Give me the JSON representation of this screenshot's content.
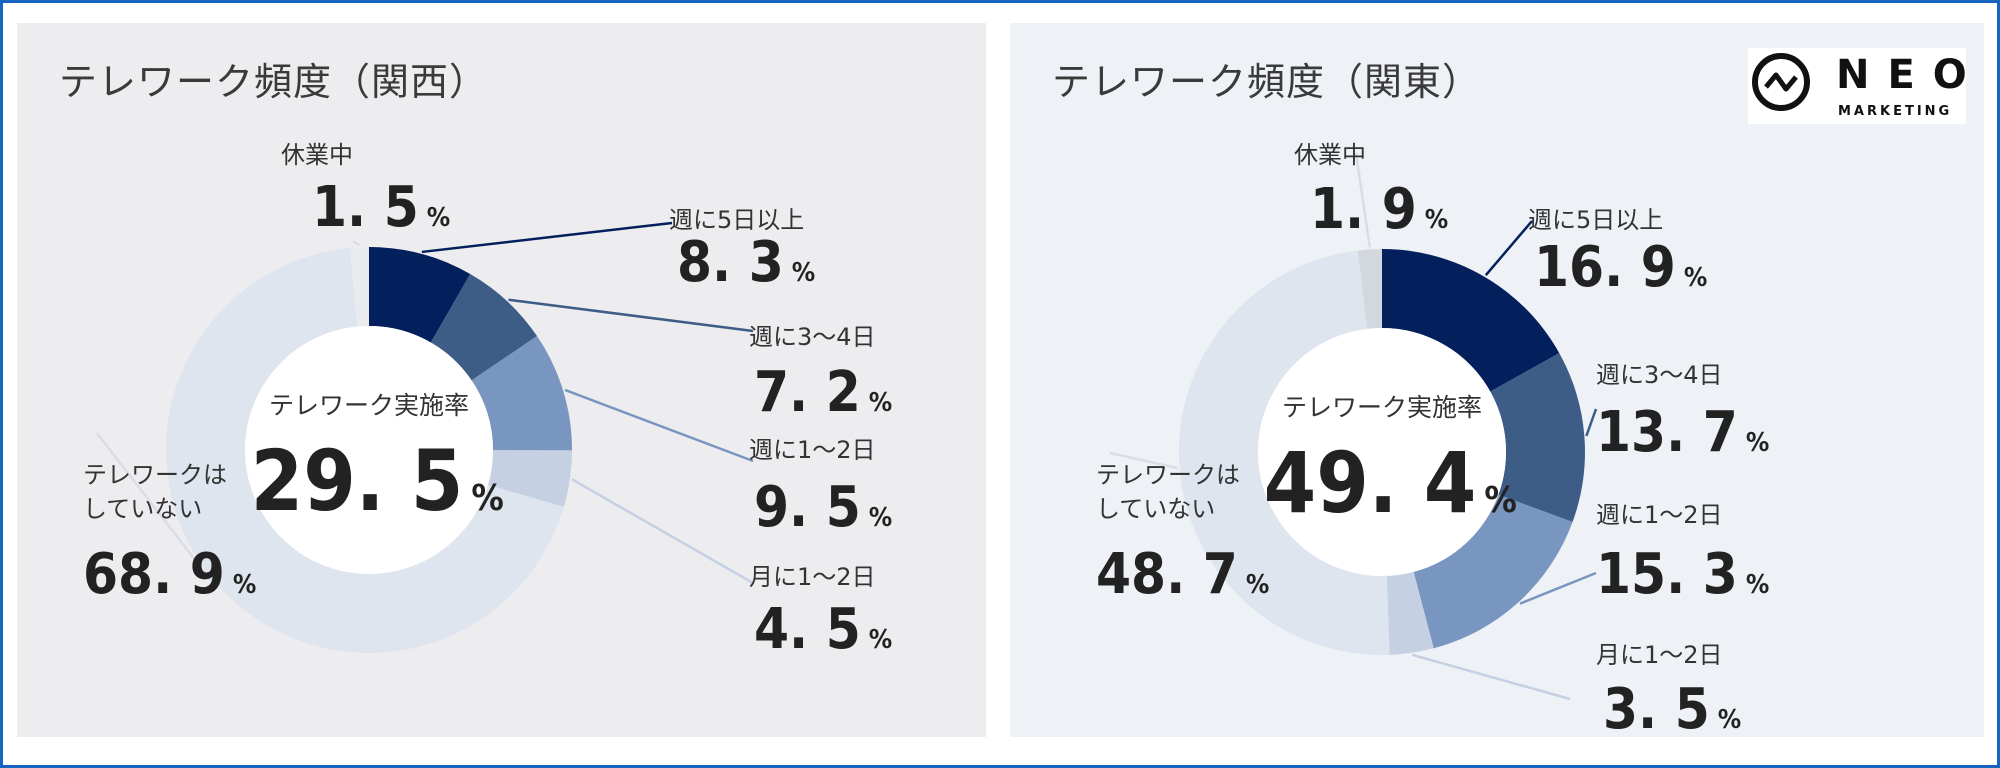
{
  "logo": {
    "word": "NEO",
    "sub": "MARKETING"
  },
  "chart_data": [
    {
      "type": "pie",
      "title": "テレワーク頻度（関西）",
      "center_label": "テレワーク実施率",
      "center_value": "29. 5",
      "center_unit": "%",
      "slices": [
        {
          "label": "週に5日以上",
          "value": 8.3,
          "display": "8. 3",
          "color": "#031f5c"
        },
        {
          "label": "週に3～4日",
          "value": 7.2,
          "display": "7. 2",
          "color": "#3d5d87"
        },
        {
          "label": "週に1～2日",
          "value": 9.5,
          "display": "9. 5",
          "color": "#7896c0"
        },
        {
          "label": "月に1～2日",
          "value": 4.5,
          "display": "4. 5",
          "color": "#c5d1e2"
        },
        {
          "label": "テレワークは\nしていない",
          "value": 68.9,
          "display": "68. 9",
          "color": "#dfe5ee"
        },
        {
          "label": "休業中",
          "value": 1.5,
          "display": "1. 5",
          "color": "#e9ebef"
        }
      ]
    },
    {
      "type": "pie",
      "title": "テレワーク頻度（関東）",
      "center_label": "テレワーク実施率",
      "center_value": "49. 4",
      "center_unit": "%",
      "slices": [
        {
          "label": "週に5日以上",
          "value": 16.9,
          "display": "16. 9",
          "color": "#031f5c"
        },
        {
          "label": "週に3～4日",
          "value": 13.7,
          "display": "13. 7",
          "color": "#3d5d87"
        },
        {
          "label": "週に1～2日",
          "value": 15.3,
          "display": "15. 3",
          "color": "#7896c0"
        },
        {
          "label": "月に1～2日",
          "value": 3.5,
          "display": "3. 5",
          "color": "#c5d1e2"
        },
        {
          "label": "テレワークは\nしていない",
          "value": 48.7,
          "display": "48. 7",
          "color": "#dfe5ee"
        },
        {
          "label": "休業中",
          "value": 1.9,
          "display": "1. 9",
          "color": "#d3d7de"
        }
      ]
    }
  ]
}
